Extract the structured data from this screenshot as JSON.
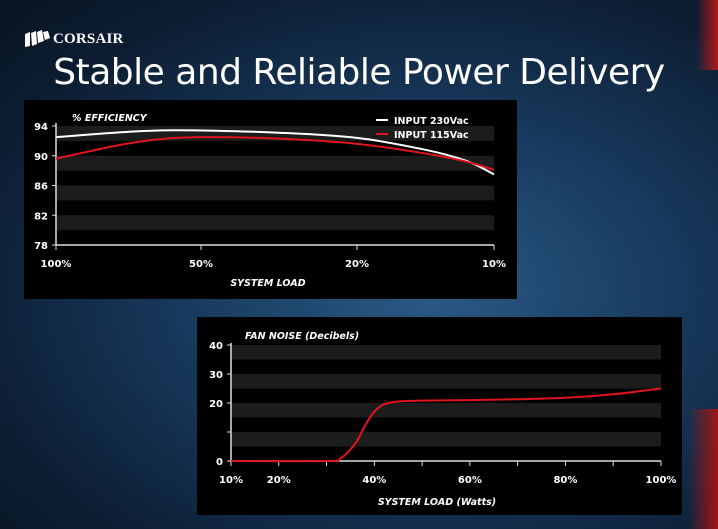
{
  "slide": {
    "logo": "CORSAIR",
    "title": "Stable and Reliable Power Delivery"
  },
  "colors": {
    "accent_red": "#e0141e",
    "line_white": "#ffffff",
    "band": "#1c1c1c"
  },
  "chart_data": [
    {
      "type": "line",
      "title": "% EFFICIENCY",
      "xlabel": "SYSTEM LOAD",
      "ylabel": "",
      "ylim": [
        78,
        94
      ],
      "yticks": [
        "94",
        "90",
        "86",
        "82",
        "78"
      ],
      "ytick_values": [
        94,
        90,
        86,
        82,
        78
      ],
      "xticks": [
        "100%",
        "50%",
        "20%",
        "10%"
      ],
      "xtick_values": [
        100,
        50,
        20,
        10
      ],
      "legend_position": "top-right",
      "series": [
        {
          "name": "INPUT 230Vac",
          "color": "#ffffff",
          "x": [
            100,
            80,
            65,
            50,
            35,
            20,
            15,
            12,
            10
          ],
          "y": [
            92.5,
            93.1,
            93.4,
            93.4,
            93.1,
            92.4,
            90.8,
            89.3,
            87.5
          ]
        },
        {
          "name": "INPUT 115Vac",
          "color": "#e0141e",
          "x": [
            100,
            80,
            65,
            50,
            35,
            20,
            15,
            12,
            10
          ],
          "y": [
            89.6,
            91.3,
            92.2,
            92.5,
            92.3,
            91.6,
            90.3,
            89.2,
            88.1
          ]
        }
      ]
    },
    {
      "type": "line",
      "title": "FAN NOISE  (Decibels)",
      "xlabel": "SYSTEM LOAD (Watts)",
      "ylabel": "",
      "ylim": [
        0,
        40
      ],
      "xlim": [
        10,
        100
      ],
      "yticks": [
        "40",
        "30",
        "20",
        "0"
      ],
      "ytick_values": [
        40,
        30,
        20,
        0
      ],
      "xticks": [
        "10%",
        "20%",
        "40%",
        "60%",
        "80%",
        "100%"
      ],
      "xtick_values": [
        10,
        20,
        40,
        60,
        80,
        100
      ],
      "series": [
        {
          "name": "Fan noise",
          "color": "#e0141e",
          "x": [
            10,
            30,
            33,
            36,
            38,
            40,
            42,
            45,
            50,
            60,
            70,
            80,
            90,
            100
          ],
          "y": [
            0,
            0,
            1,
            6,
            12,
            17,
            19.5,
            20.5,
            20.8,
            21,
            21.3,
            21.8,
            23,
            25
          ]
        }
      ]
    }
  ]
}
